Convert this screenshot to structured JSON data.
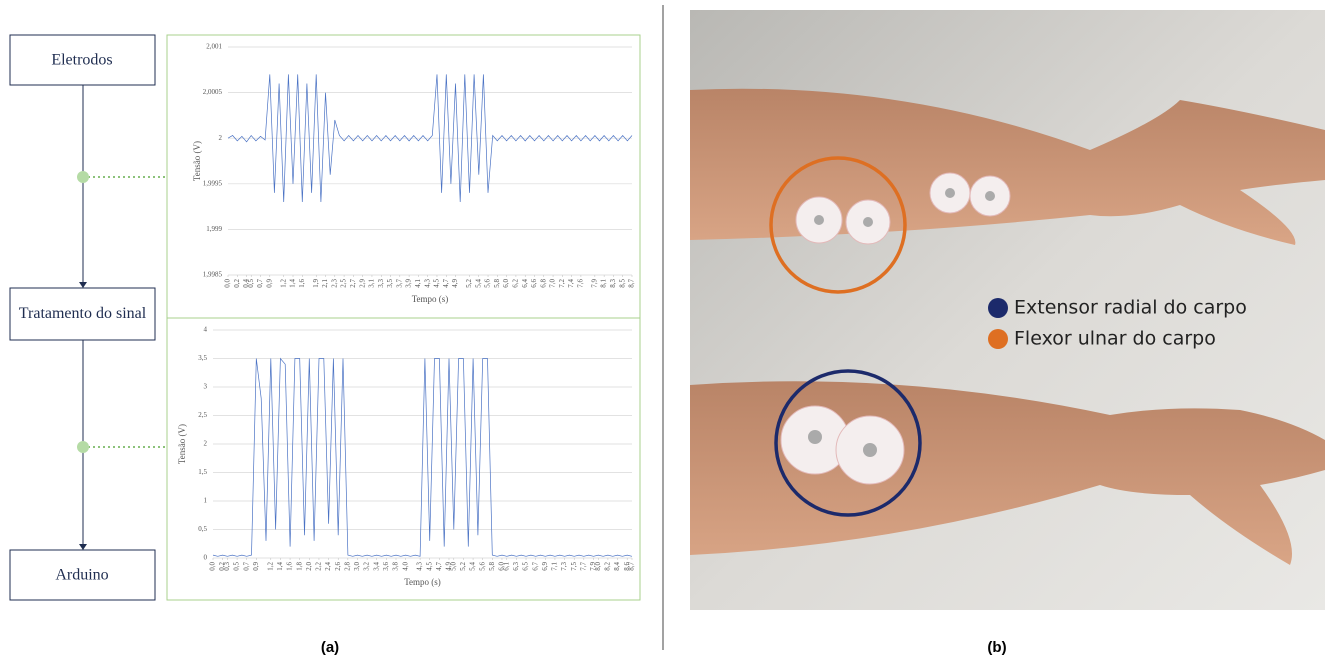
{
  "diagram": {
    "nodes": [
      {
        "label": "Eletrodos"
      },
      {
        "label": "Tratamento do sinal"
      },
      {
        "label": "Arduino"
      }
    ]
  },
  "chart_data": [
    {
      "type": "line",
      "ylabel": "Tensão (V)",
      "xlabel": "Tempo (s)",
      "color": "#4a72c4",
      "grid": true,
      "ylim": [
        1.9985,
        2.001
      ],
      "yticks": [
        {
          "value": 1.9985,
          "label": "1,9985"
        },
        {
          "value": 1.999,
          "label": "1,999"
        },
        {
          "value": 1.9995,
          "label": "1,9995"
        },
        2,
        {
          "value": 2.0005,
          "label": "2,0005"
        },
        {
          "value": 2.001,
          "label": "2,001"
        }
      ],
      "xlim": [
        0,
        8.7
      ],
      "xticks": [
        {
          "value": 0,
          "label": "0,0"
        },
        {
          "value": 0.2,
          "label": "0,2"
        },
        {
          "value": 0.4,
          "label": "0,4"
        },
        {
          "value": 0.5,
          "label": "0,5"
        },
        {
          "value": 0.7,
          "label": "0,7"
        },
        {
          "value": 0.9,
          "label": "0,9"
        },
        {
          "value": 1.2,
          "label": "1,2"
        },
        {
          "value": 1.4,
          "label": "1,4"
        },
        {
          "value": 1.6,
          "label": "1,6"
        },
        {
          "value": 1.9,
          "label": "1,9"
        },
        {
          "value": 2.1,
          "label": "2,1"
        },
        {
          "value": 2.3,
          "label": "2,3"
        },
        {
          "value": 2.5,
          "label": "2,5"
        },
        {
          "value": 2.7,
          "label": "2,7"
        },
        {
          "value": 2.9,
          "label": "2,9"
        },
        {
          "value": 3.1,
          "label": "3,1"
        },
        {
          "value": 3.3,
          "label": "3,3"
        },
        {
          "value": 3.5,
          "label": "3,5"
        },
        {
          "value": 3.7,
          "label": "3,7"
        },
        {
          "value": 3.9,
          "label": "3,9"
        },
        {
          "value": 4.1,
          "label": "4,1"
        },
        {
          "value": 4.3,
          "label": "4,3"
        },
        {
          "value": 4.5,
          "label": "4,5"
        },
        {
          "value": 4.7,
          "label": "4,7"
        },
        {
          "value": 4.9,
          "label": "4,9"
        },
        {
          "value": 5.2,
          "label": "5,2"
        },
        {
          "value": 5.4,
          "label": "5,4"
        },
        {
          "value": 5.6,
          "label": "5,6"
        },
        {
          "value": 5.8,
          "label": "5,8"
        },
        {
          "value": 6.0,
          "label": "6,0"
        },
        {
          "value": 6.2,
          "label": "6,2"
        },
        {
          "value": 6.4,
          "label": "6,4"
        },
        {
          "value": 6.6,
          "label": "6,6"
        },
        {
          "value": 6.8,
          "label": "6,8"
        },
        {
          "value": 7.0,
          "label": "7,0"
        },
        {
          "value": 7.2,
          "label": "7,2"
        },
        {
          "value": 7.4,
          "label": "7,4"
        },
        {
          "value": 7.6,
          "label": "7,6"
        },
        {
          "value": 7.9,
          "label": "7,9"
        },
        {
          "value": 8.1,
          "label": "8,1"
        },
        {
          "value": 8.3,
          "label": "8,3"
        },
        {
          "value": 8.5,
          "label": "8,5"
        },
        {
          "value": 8.7,
          "label": "8,7"
        }
      ],
      "x": [
        0,
        0.1,
        0.2,
        0.3,
        0.4,
        0.5,
        0.6,
        0.7,
        0.8,
        0.9,
        1.0,
        1.1,
        1.2,
        1.3,
        1.4,
        1.5,
        1.6,
        1.7,
        1.8,
        1.9,
        2.0,
        2.1,
        2.2,
        2.3,
        2.4,
        2.5,
        2.6,
        2.7,
        2.8,
        2.9,
        3.0,
        3.1,
        3.2,
        3.3,
        3.4,
        3.5,
        3.6,
        3.7,
        3.8,
        3.9,
        4.0,
        4.1,
        4.2,
        4.3,
        4.4,
        4.5,
        4.6,
        4.7,
        4.8,
        4.9,
        5.0,
        5.1,
        5.2,
        5.3,
        5.4,
        5.5,
        5.6,
        5.7,
        5.8,
        5.9,
        6.0,
        6.1,
        6.2,
        6.3,
        6.4,
        6.5,
        6.6,
        6.7,
        6.8,
        6.9,
        7.0,
        7.1,
        7.2,
        7.3,
        7.4,
        7.5,
        7.6,
        7.7,
        7.8,
        7.9,
        8.0,
        8.1,
        8.2,
        8.3,
        8.4,
        8.5,
        8.6,
        8.7
      ],
      "values": [
        2,
        2.00003,
        1.99997,
        2.00002,
        1.99996,
        2.00003,
        1.99997,
        2.00002,
        1.99998,
        2.0007,
        1.9994,
        2.0006,
        1.9993,
        2.0007,
        1.9995,
        2.0007,
        1.9993,
        2.0006,
        1.9994,
        2.0007,
        1.9993,
        2.0005,
        1.9996,
        2.0002,
        2.00003,
        1.99997,
        2.00003,
        1.99997,
        2.00003,
        1.99997,
        2.00003,
        1.99997,
        2.00003,
        1.99997,
        2.00003,
        1.99997,
        2.00003,
        1.99997,
        2.00003,
        1.99997,
        2.00003,
        1.99997,
        2.00003,
        1.99997,
        2.00003,
        2.0007,
        1.9994,
        2.0007,
        1.9995,
        2.0006,
        1.9993,
        2.0007,
        1.9994,
        2.0007,
        1.9996,
        2.0007,
        1.9994,
        2.00003,
        1.99997,
        2.00003,
        1.99997,
        2.00003,
        1.99997,
        2.00003,
        1.99997,
        2.00003,
        1.99997,
        2.00003,
        1.99997,
        2.00003,
        1.99997,
        2.00003,
        1.99997,
        2.00003,
        1.99997,
        2.00003,
        1.99997,
        2.00003,
        1.99997,
        2.00003,
        1.99997,
        2.00003,
        1.99997,
        2.00003,
        1.99997,
        2.00003,
        1.99997,
        2.00003
      ]
    },
    {
      "type": "line",
      "ylabel": "Tensão (V)",
      "xlabel": "Tempo (s)",
      "color": "#4a72c4",
      "grid": true,
      "ylim": [
        0,
        4
      ],
      "yticks": [
        0,
        {
          "value": 0.5,
          "label": "0,5"
        },
        1,
        {
          "value": 1.5,
          "label": "1,5"
        },
        2,
        {
          "value": 2.5,
          "label": "2,5"
        },
        3,
        {
          "value": 3.5,
          "label": "3,5"
        },
        4
      ],
      "xlim": [
        0,
        8.7
      ],
      "xticks": [
        {
          "value": 0,
          "label": "0,0"
        },
        {
          "value": 0.2,
          "label": "0,2"
        },
        {
          "value": 0.3,
          "label": "0,3"
        },
        {
          "value": 0.5,
          "label": "0,5"
        },
        {
          "value": 0.7,
          "label": "0,7"
        },
        {
          "value": 0.9,
          "label": "0,9"
        },
        {
          "value": 1.2,
          "label": "1,2"
        },
        {
          "value": 1.4,
          "label": "1,4"
        },
        {
          "value": 1.6,
          "label": "1,6"
        },
        {
          "value": 1.8,
          "label": "1,8"
        },
        {
          "value": 2.0,
          "label": "2,0"
        },
        {
          "value": 2.2,
          "label": "2,2"
        },
        {
          "value": 2.4,
          "label": "2,4"
        },
        {
          "value": 2.6,
          "label": "2,6"
        },
        {
          "value": 2.8,
          "label": "2,8"
        },
        {
          "value": 3.0,
          "label": "3,0"
        },
        {
          "value": 3.2,
          "label": "3,2"
        },
        {
          "value": 3.4,
          "label": "3,4"
        },
        {
          "value": 3.6,
          "label": "3,6"
        },
        {
          "value": 3.8,
          "label": "3,8"
        },
        {
          "value": 4.0,
          "label": "4,0"
        },
        {
          "value": 4.3,
          "label": "4,3"
        },
        {
          "value": 4.5,
          "label": "4,5"
        },
        {
          "value": 4.7,
          "label": "4,7"
        },
        {
          "value": 4.9,
          "label": "4,9"
        },
        {
          "value": 5.0,
          "label": "5,0"
        },
        {
          "value": 5.2,
          "label": "5,2"
        },
        {
          "value": 5.4,
          "label": "5,4"
        },
        {
          "value": 5.6,
          "label": "5,6"
        },
        {
          "value": 5.8,
          "label": "5,8"
        },
        {
          "value": 6.0,
          "label": "6,0"
        },
        {
          "value": 6.1,
          "label": "6,1"
        },
        {
          "value": 6.3,
          "label": "6,3"
        },
        {
          "value": 6.5,
          "label": "6,5"
        },
        {
          "value": 6.7,
          "label": "6,7"
        },
        {
          "value": 6.9,
          "label": "6,9"
        },
        {
          "value": 7.1,
          "label": "7,1"
        },
        {
          "value": 7.3,
          "label": "7,3"
        },
        {
          "value": 7.5,
          "label": "7,5"
        },
        {
          "value": 7.7,
          "label": "7,7"
        },
        {
          "value": 7.9,
          "label": "7,9"
        },
        {
          "value": 8.0,
          "label": "8,0"
        },
        {
          "value": 8.2,
          "label": "8,2"
        },
        {
          "value": 8.4,
          "label": "8,4"
        },
        {
          "value": 8.6,
          "label": "8,6"
        },
        {
          "value": 8.7,
          "label": "8,7"
        }
      ],
      "x": [
        0,
        0.1,
        0.2,
        0.3,
        0.4,
        0.5,
        0.6,
        0.7,
        0.8,
        0.9,
        1.0,
        1.1,
        1.2,
        1.3,
        1.4,
        1.5,
        1.6,
        1.7,
        1.8,
        1.9,
        2.0,
        2.1,
        2.2,
        2.3,
        2.4,
        2.5,
        2.6,
        2.7,
        2.8,
        2.9,
        3.0,
        3.1,
        3.2,
        3.3,
        3.4,
        3.5,
        3.6,
        3.7,
        3.8,
        3.9,
        4.0,
        4.1,
        4.2,
        4.3,
        4.4,
        4.5,
        4.6,
        4.7,
        4.8,
        4.9,
        5.0,
        5.1,
        5.2,
        5.3,
        5.4,
        5.5,
        5.6,
        5.7,
        5.8,
        5.9,
        6.0,
        6.1,
        6.2,
        6.3,
        6.4,
        6.5,
        6.6,
        6.7,
        6.8,
        6.9,
        7.0,
        7.1,
        7.2,
        7.3,
        7.4,
        7.5,
        7.6,
        7.7,
        7.8,
        7.9,
        8.0,
        8.1,
        8.2,
        8.3,
        8.4,
        8.5,
        8.6,
        8.7
      ],
      "values": [
        0.05,
        0.03,
        0.05,
        0.03,
        0.05,
        0.03,
        0.05,
        0.03,
        0.05,
        3.5,
        2.8,
        0.3,
        3.5,
        0.5,
        3.5,
        3.4,
        0.2,
        3.5,
        3.5,
        0.4,
        3.5,
        0.3,
        3.5,
        3.5,
        0.6,
        3.5,
        0.4,
        3.5,
        0.05,
        0.03,
        0.05,
        0.03,
        0.05,
        0.03,
        0.05,
        0.03,
        0.05,
        0.03,
        0.05,
        0.03,
        0.05,
        0.03,
        0.05,
        0.03,
        3.5,
        0.3,
        3.5,
        3.5,
        0.2,
        3.5,
        0.5,
        3.5,
        3.5,
        0.2,
        3.5,
        0.4,
        3.5,
        3.5,
        0.05,
        0.03,
        0.05,
        0.03,
        0.05,
        0.03,
        0.05,
        0.03,
        0.05,
        0.03,
        0.05,
        0.03,
        0.05,
        0.03,
        0.05,
        0.03,
        0.05,
        0.03,
        0.05,
        0.03,
        0.05,
        0.03,
        0.05,
        0.03,
        0.05,
        0.03,
        0.05,
        0.03,
        0.05,
        0.03
      ]
    }
  ],
  "photo": {
    "legend": [
      {
        "label": "Extensor radial do carpo",
        "color": "#1c2a6b"
      },
      {
        "label": "Flexor ulnar do carpo",
        "color": "#de6f22"
      }
    ]
  },
  "captions": [
    "(a)",
    "(b)"
  ]
}
